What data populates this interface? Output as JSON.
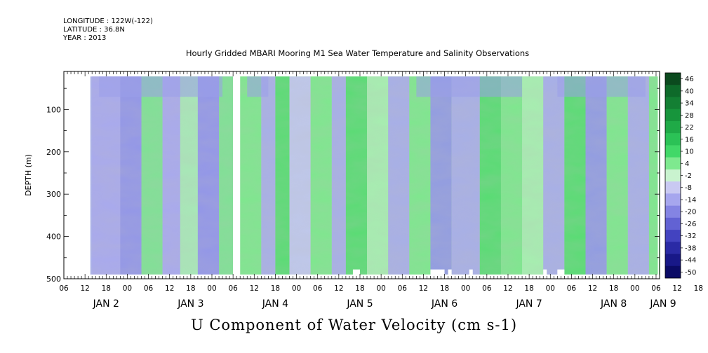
{
  "header": {
    "longitude": "LONGITUDE : 122W(-122)",
    "latitude": "LATITUDE : 36.8N",
    "year": "YEAR : 2013"
  },
  "title": "Hourly Gridded MBARI Mooring M1 Sea Water Temperature and Salinity Observations",
  "bottom_title": "U Component of Water Velocity (cm s-1)",
  "chart_data": {
    "type": "heatmap",
    "title": "Hourly Gridded MBARI Mooring M1 Sea Water Temperature and Salinity Observations",
    "variable": "U Component of Water Velocity (cm s-1)",
    "ylabel": "DEPTH (m)",
    "ylim": [
      500,
      10
    ],
    "y_reversed": true,
    "yticks": [
      100,
      200,
      300,
      400,
      500
    ],
    "x_hour_ticks": [
      "06",
      "12",
      "18",
      "00",
      "06",
      "12",
      "18",
      "00",
      "06",
      "12",
      "18",
      "00",
      "06",
      "12",
      "18",
      "00",
      "06",
      "12",
      "18",
      "00",
      "06",
      "12",
      "18",
      "00",
      "06",
      "12",
      "18",
      "00",
      "06",
      "12",
      "18",
      "00",
      "06"
    ],
    "x_day_labels": [
      {
        "label": "JAN  2",
        "hour": 12
      },
      {
        "label": "JAN  3",
        "hour": 36
      },
      {
        "label": "JAN  4",
        "hour": 60
      },
      {
        "label": "JAN  5",
        "hour": 84
      },
      {
        "label": "JAN  6",
        "hour": 108
      },
      {
        "label": "JAN  7",
        "hour": 132
      },
      {
        "label": "JAN  8",
        "hour": 156
      },
      {
        "label": "JAN  9",
        "hour": 170
      }
    ],
    "data_gap_hours": [
      48,
      50
    ],
    "colorbar": {
      "levels": [
        "46",
        "40",
        "34",
        "28",
        "22",
        "16",
        "10",
        "4",
        "-2",
        "-8",
        "-14",
        "-20",
        "-26",
        "-32",
        "-38",
        "-44",
        "-50"
      ],
      "min": -50,
      "max": 50
    },
    "dominant_pattern": "alternating vertical bands of positive (green, ~4 to 16) and negative (blue, ~-2 to -20) velocity"
  }
}
